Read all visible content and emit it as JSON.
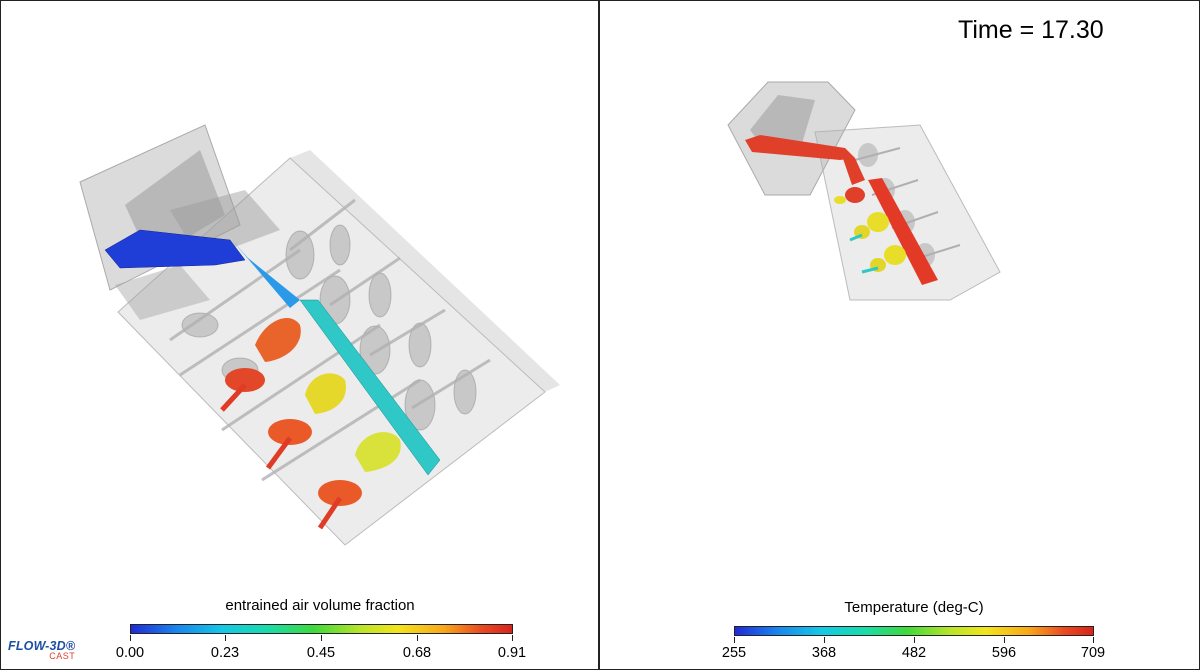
{
  "time_display": "Time = 17.30",
  "left_panel": {
    "legend": {
      "title": "entrained air volume fraction",
      "ticks": [
        "0.00",
        "0.23",
        "0.45",
        "0.68",
        "0.91"
      ]
    }
  },
  "right_panel": {
    "legend": {
      "title": "Temperature (deg-C)",
      "ticks": [
        "255",
        "368",
        "482",
        "596",
        "709"
      ]
    }
  },
  "logo": {
    "main": "FLOW-3D®",
    "sub": "CAST"
  },
  "colors": {
    "mold": "#c8c8c8",
    "colormap": [
      "#1f2bd6",
      "#15c8e6",
      "#3fd93c",
      "#f2e51c",
      "#ea4a22",
      "#d8241d"
    ]
  }
}
